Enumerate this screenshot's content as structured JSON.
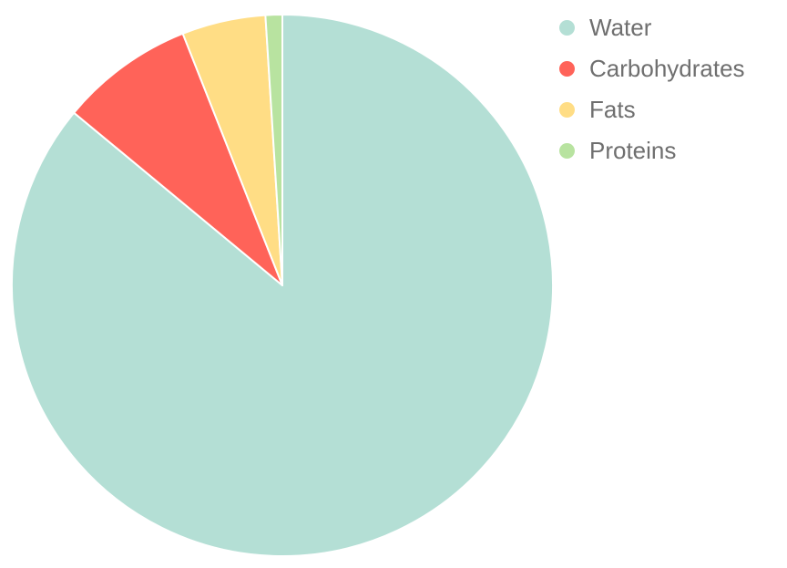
{
  "chart_data": {
    "type": "pie",
    "legend_position": "top-right",
    "slices": [
      {
        "label": "Water",
        "value": 86,
        "color": "#b4dfd5"
      },
      {
        "label": "Carbohydrates",
        "value": 8,
        "color": "#ff6359"
      },
      {
        "label": "Fats",
        "value": 5,
        "color": "#ffdd85"
      },
      {
        "label": "Proteins",
        "value": 1,
        "color": "#b8e3a0"
      }
    ]
  }
}
